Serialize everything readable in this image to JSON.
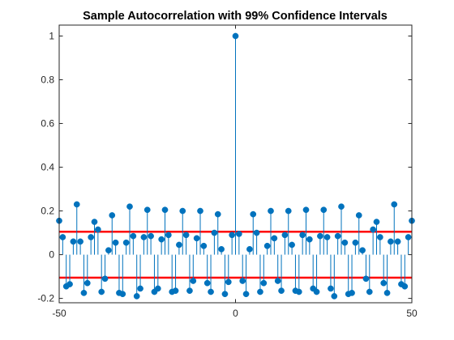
{
  "chart_data": {
    "type": "stem",
    "title": "Sample Autocorrelation with 99% Confidence Intervals",
    "xlabel": "",
    "ylabel": "",
    "xlim": [
      -50,
      50
    ],
    "ylim": [
      -0.22,
      1.05
    ],
    "xticks": [
      -50,
      0,
      50
    ],
    "yticks": [
      -0.2,
      0,
      0.2,
      0.4,
      0.6,
      0.8,
      1
    ],
    "ytick_labels": [
      "-0.2",
      "0",
      "0.2",
      "0.4",
      "0.6",
      "0.8",
      "1"
    ],
    "confidence_bounds": [
      0.105,
      -0.105
    ],
    "colors": {
      "stem": "#0072BD",
      "bounds": "#FF0000",
      "axis": "#262626"
    },
    "lags": [
      -50,
      -49,
      -48,
      -47,
      -46,
      -45,
      -44,
      -43,
      -42,
      -41,
      -40,
      -39,
      -38,
      -37,
      -36,
      -35,
      -34,
      -33,
      -32,
      -31,
      -30,
      -29,
      -28,
      -27,
      -26,
      -25,
      -24,
      -23,
      -22,
      -21,
      -20,
      -19,
      -18,
      -17,
      -16,
      -15,
      -14,
      -13,
      -12,
      -11,
      -10,
      -9,
      -8,
      -7,
      -6,
      -5,
      -4,
      -3,
      -2,
      -1,
      0,
      1,
      2,
      3,
      4,
      5,
      6,
      7,
      8,
      9,
      10,
      11,
      12,
      13,
      14,
      15,
      16,
      17,
      18,
      19,
      20,
      21,
      22,
      23,
      24,
      25,
      26,
      27,
      28,
      29,
      30,
      31,
      32,
      33,
      34,
      35,
      36,
      37,
      38,
      39,
      40,
      41,
      42,
      43,
      44,
      45,
      46,
      47,
      48,
      49,
      50
    ],
    "values": [
      0.155,
      0.08,
      -0.145,
      -0.135,
      0.06,
      0.23,
      0.06,
      -0.175,
      -0.13,
      0.08,
      0.15,
      0.115,
      -0.17,
      -0.11,
      0.02,
      0.18,
      0.055,
      -0.175,
      -0.18,
      0.055,
      0.22,
      0.085,
      -0.19,
      -0.155,
      0.08,
      0.205,
      0.085,
      -0.17,
      -0.155,
      0.07,
      0.205,
      0.09,
      -0.17,
      -0.165,
      0.045,
      0.2,
      0.09,
      -0.165,
      -0.12,
      0.075,
      0.2,
      0.04,
      -0.13,
      -0.17,
      0.1,
      0.185,
      0.025,
      -0.18,
      -0.125,
      0.09,
      1.0,
      0.095,
      -0.12,
      -0.18,
      0.025,
      0.185,
      0.1,
      -0.17,
      -0.13,
      0.04,
      0.2,
      0.075,
      -0.12,
      -0.165,
      0.09,
      0.2,
      0.045,
      -0.165,
      -0.17,
      0.09,
      0.205,
      0.07,
      -0.155,
      -0.17,
      0.085,
      0.205,
      0.08,
      -0.155,
      -0.19,
      0.085,
      0.22,
      0.055,
      -0.18,
      -0.175,
      0.055,
      0.18,
      0.02,
      -0.11,
      -0.17,
      0.115,
      0.15,
      0.08,
      -0.13,
      -0.175,
      0.06,
      0.23,
      0.06,
      -0.135,
      -0.145,
      0.08,
      0.155
    ]
  }
}
